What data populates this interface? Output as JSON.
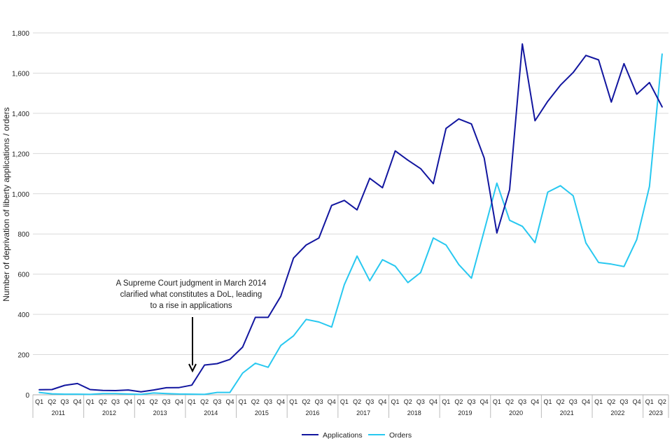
{
  "chart_data": {
    "type": "line",
    "ylabel": "Number of deprivation of liberty applications / orders",
    "ylim": [
      0,
      1800
    ],
    "yticks": [
      0,
      200,
      400,
      600,
      800,
      1000,
      1200,
      1400,
      1600,
      1800
    ],
    "ytick_labels": [
      "0",
      "200",
      "400",
      "600",
      "800",
      "1,000",
      "1,200",
      "1,400",
      "1,600",
      "1,800"
    ],
    "grid": true,
    "legend_position": "bottom",
    "quarters": [
      "Q1",
      "Q2",
      "Q3",
      "Q4",
      "Q1",
      "Q2",
      "Q3",
      "Q4",
      "Q1",
      "Q2",
      "Q3",
      "Q4",
      "Q1",
      "Q2",
      "Q3",
      "Q4",
      "Q1",
      "Q2",
      "Q3",
      "Q4",
      "Q1",
      "Q2",
      "Q3",
      "Q4",
      "Q1",
      "Q2",
      "Q3",
      "Q4",
      "Q1",
      "Q2",
      "Q3",
      "Q4",
      "Q1",
      "Q2",
      "Q3",
      "Q4",
      "Q1",
      "Q2",
      "Q3",
      "Q4",
      "Q1",
      "Q2",
      "Q3",
      "Q4",
      "Q1",
      "Q2",
      "Q3",
      "Q4",
      "Q1",
      "Q2"
    ],
    "years": [
      "2011",
      "2012",
      "2013",
      "2014",
      "2015",
      "2016",
      "2017",
      "2018",
      "2019",
      "2020",
      "2021",
      "2022",
      "2023"
    ],
    "series": [
      {
        "name": "Applications",
        "color": "#12169f",
        "values": [
          25,
          26,
          47,
          56,
          26,
          22,
          21,
          24,
          15,
          24,
          35,
          36,
          48,
          148,
          155,
          176,
          237,
          385,
          385,
          490,
          680,
          745,
          780,
          942,
          967,
          920,
          1077,
          1030,
          1213,
          1167,
          1125,
          1050,
          1325,
          1372,
          1347,
          1178,
          805,
          1020,
          1745,
          1363,
          1460,
          1540,
          1603,
          1688,
          1666,
          1456,
          1647,
          1495,
          1553,
          1432
        ]
      },
      {
        "name": "Orders",
        "color": "#28c8f0",
        "values": [
          12,
          5,
          3,
          3,
          2,
          6,
          6,
          4,
          2,
          9,
          6,
          4,
          3,
          2,
          12,
          12,
          108,
          157,
          137,
          245,
          293,
          375,
          362,
          337,
          548,
          690,
          567,
          672,
          640,
          558,
          608,
          780,
          745,
          648,
          580,
          816,
          1053,
          868,
          838,
          757,
          1008,
          1040,
          990,
          755,
          658,
          650,
          638,
          772,
          1036,
          1695
        ]
      }
    ],
    "annotation": {
      "lines": [
        "A Supreme Court judgment in March 2014",
        "clarified what constitutes a DoL, leading",
        "to a rise in applications"
      ],
      "points_to_index": 12
    }
  }
}
